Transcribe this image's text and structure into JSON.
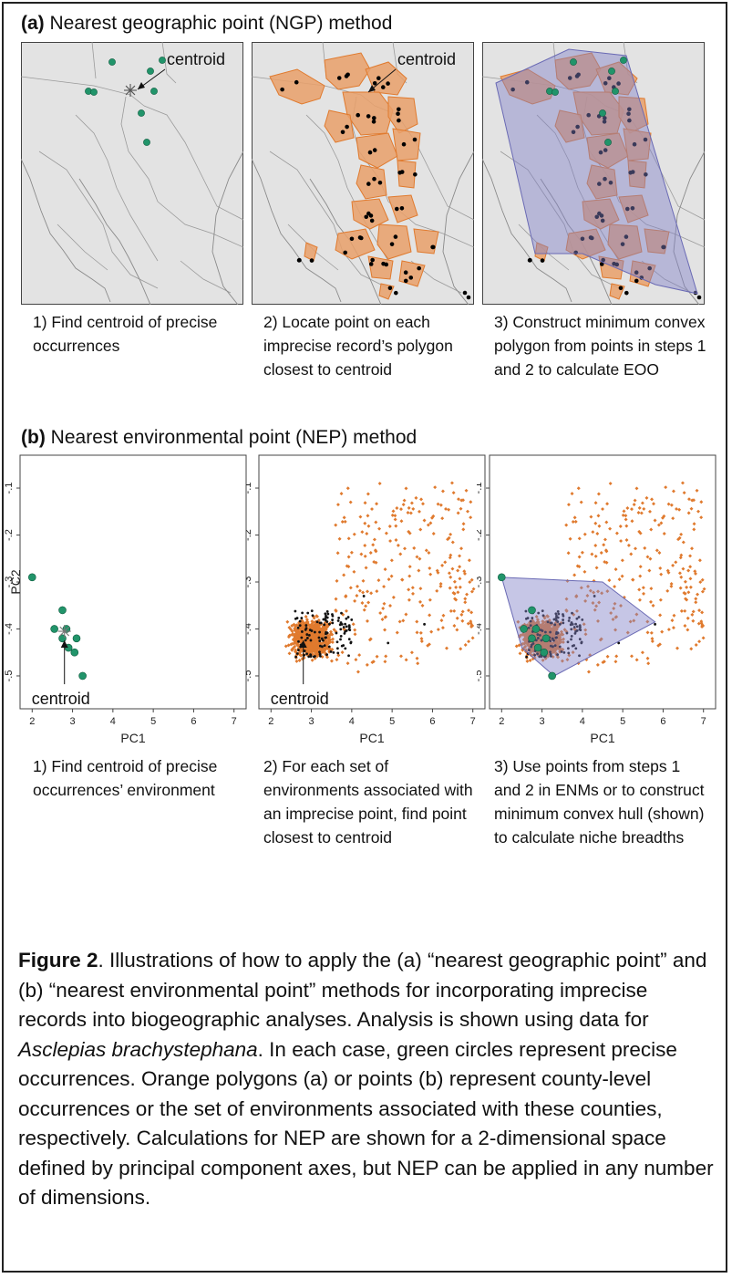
{
  "panel_a": {
    "tag": "(a)",
    "title": "Nearest geographic point (NGP) method",
    "centroid_label": "centroid",
    "steps": [
      "1) Find centroid of precise occurrences",
      "2) Locate point on each imprecise record’s polygon closest to centroid",
      "3) Construct minimum convex polygon from points in steps 1 and 2 to calculate EOO"
    ]
  },
  "panel_b": {
    "tag": "(b)",
    "title": "Nearest environmental point (NEP) method",
    "centroid_label": "centroid",
    "xlabel": "PC1",
    "ylabel": "PC2",
    "x_ticks": [
      "2",
      "3",
      "4",
      "5",
      "6",
      "7"
    ],
    "y_ticks": [
      "-.1",
      "-.2",
      "-.3",
      "-.4",
      "-.5"
    ],
    "steps": [
      "1) Find centroid of precise occurrences’ environment",
      "2) For each set of environments associated with an imprecise point, find point closest to centroid",
      "3) Use points from steps 1 and 2 in ENMs or to construct minimum convex hull (shown) to calculate niche breadths"
    ]
  },
  "colors": {
    "precise": "#21946a",
    "county": "#e07a2e",
    "county_fill": "#e9a06a",
    "hull": "#8080c8",
    "map_bg": "#e3e3e3"
  },
  "icons": {
    "centroid_marker": "asterisk-icon",
    "pointer": "arrow-icon"
  },
  "chart_data": [
    {
      "type": "scatter",
      "title": "",
      "xlabel": "PC1",
      "ylabel": "PC2",
      "xlim": [
        1.7,
        7.3
      ],
      "ylim": [
        -0.57,
        -0.03
      ],
      "series": [
        {
          "points": [
            [
              2.0,
              -0.29
            ],
            [
              2.75,
              -0.36
            ],
            [
              2.55,
              -0.4
            ],
            [
              2.85,
              -0.4
            ],
            [
              2.75,
              -0.42
            ],
            [
              2.9,
              -0.44
            ],
            [
              3.1,
              -0.42
            ],
            [
              3.05,
              -0.45
            ],
            [
              3.25,
              -0.5
            ]
          ]
        }
      ],
      "centroid": [
        2.8,
        -0.405
      ]
    }
  ],
  "figure_caption": {
    "label": "Figure 2",
    "part1": ". Illustrations of how to apply the (a) “nearest geographic point” and (b) “nearest environmental point” methods for incorporating imprecise records into biogeographic analyses. Analysis is shown using data for ",
    "species": "Asclepias brachystephana",
    "part2": ". In each case, green circles represent precise occurrences. Orange polygons (a) or points (b) represent county-level occurrences or the set of environments associated with these counties, respectively. Calculations for NEP are shown for a 2-dimensional space defined by principal component axes, but NEP can be applied in any number of dimensions."
  }
}
